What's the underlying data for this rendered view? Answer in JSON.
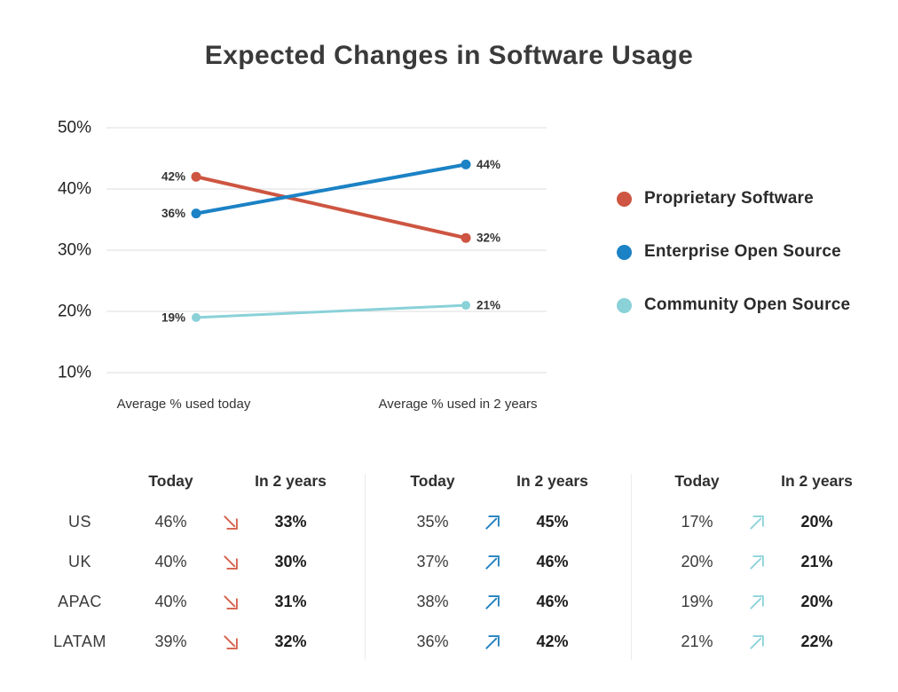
{
  "chart_data": {
    "type": "line",
    "subtype": "slope",
    "title": "Expected Changes in Software Usage",
    "x_categories": [
      "Average % used today",
      "Average % used in 2 years"
    ],
    "ylim": [
      10,
      50
    ],
    "yticks": [
      {
        "value": 50,
        "label": "50%"
      },
      {
        "value": 40,
        "label": "40%"
      },
      {
        "value": 30,
        "label": "30%"
      },
      {
        "value": 20,
        "label": "20%"
      },
      {
        "value": 10,
        "label": "10%"
      }
    ],
    "grid": "horizontal",
    "legend_position": "right",
    "series": [
      {
        "name": "Proprietary Software",
        "color": "#cd5541",
        "values": [
          42,
          32
        ],
        "labels": [
          "42%",
          "32%"
        ],
        "line_width": 4,
        "dot_radius": 5.5
      },
      {
        "name": "Enterprise Open Source",
        "color": "#1b82c5",
        "values": [
          36,
          44
        ],
        "labels": [
          "36%",
          "44%"
        ],
        "line_width": 4,
        "dot_radius": 5.5
      },
      {
        "name": "Community Open Source",
        "color": "#8ad1d8",
        "values": [
          19,
          21
        ],
        "labels": [
          "19%",
          "21%"
        ],
        "line_width": 3,
        "dot_radius": 5
      }
    ]
  },
  "tables": {
    "row_labels": [
      "US",
      "UK",
      "APAC",
      "LATAM"
    ],
    "columns": {
      "today": "Today",
      "future": "In 2 years"
    },
    "groups": [
      {
        "series": "Proprietary Software",
        "trend": "down",
        "arrow_color": "#d5604b",
        "rows": [
          [
            "46%",
            "33%"
          ],
          [
            "40%",
            "30%"
          ],
          [
            "40%",
            "31%"
          ],
          [
            "39%",
            "32%"
          ]
        ]
      },
      {
        "series": "Enterprise Open Source",
        "trend": "up",
        "arrow_color": "#2381bd",
        "rows": [
          [
            "35%",
            "45%"
          ],
          [
            "37%",
            "46%"
          ],
          [
            "38%",
            "46%"
          ],
          [
            "36%",
            "42%"
          ]
        ]
      },
      {
        "series": "Community Open Source",
        "trend": "up",
        "arrow_color": "#8ed3d9",
        "rows": [
          [
            "17%",
            "20%"
          ],
          [
            "20%",
            "21%"
          ],
          [
            "19%",
            "20%"
          ],
          [
            "21%",
            "22%"
          ]
        ]
      }
    ]
  }
}
